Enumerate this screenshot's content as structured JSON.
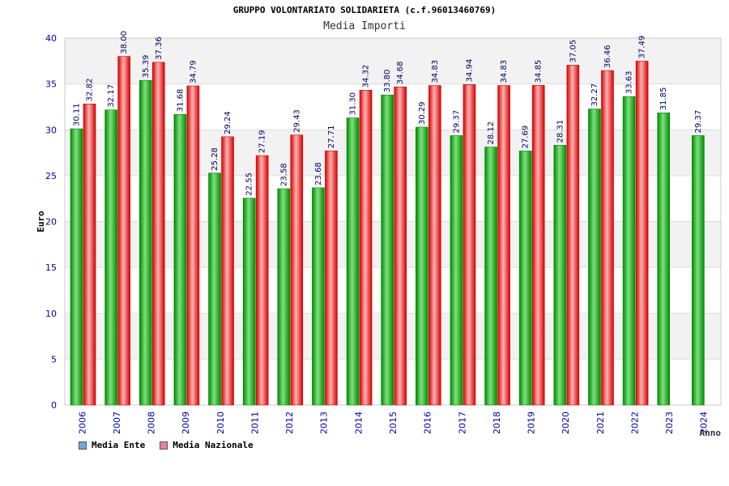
{
  "chart_data": {
    "type": "bar",
    "title": "GRUPPO VOLONTARIATO SOLIDARIETA (c.f.96013460769)",
    "subtitle": "Media Importi",
    "xlabel": "Anno",
    "ylabel": "Euro",
    "ylim": [
      0,
      40
    ],
    "yticks": [
      0,
      5,
      10,
      15,
      20,
      25,
      30,
      35,
      40
    ],
    "grid": true,
    "legend_position": "bottom-left",
    "categories": [
      "2006",
      "2007",
      "2008",
      "2009",
      "2010",
      "2011",
      "2012",
      "2013",
      "2014",
      "2015",
      "2016",
      "2017",
      "2018",
      "2019",
      "2020",
      "2021",
      "2022",
      "2023",
      "2024"
    ],
    "series": [
      {
        "name": "Media Ente",
        "values": [
          30.11,
          32.17,
          35.39,
          31.68,
          25.28,
          22.55,
          23.58,
          23.68,
          31.3,
          33.8,
          30.29,
          29.37,
          28.12,
          27.69,
          28.31,
          32.27,
          33.63,
          31.85,
          29.37
        ],
        "labels": [
          "30.11",
          "32.17",
          "35.39",
          "31.68",
          "25.28",
          "22.55",
          "23.58",
          "23.68",
          "31.30",
          "33.80",
          "30.29",
          "29.37",
          "28.12",
          "27.69",
          "28.31",
          "32.27",
          "33.63",
          "31.85",
          "29.37"
        ]
      },
      {
        "name": "Media Nazionale",
        "values": [
          32.82,
          38.0,
          37.36,
          34.79,
          29.24,
          27.19,
          29.43,
          27.71,
          34.32,
          34.68,
          34.83,
          34.94,
          34.83,
          34.85,
          37.05,
          36.46,
          37.49,
          null,
          null
        ],
        "labels": [
          "32.82",
          "38.00",
          "37.36",
          "34.79",
          "29.24",
          "27.19",
          "29.43",
          "27.71",
          "34.32",
          "34.68",
          "34.83",
          "34.94",
          "34.83",
          "34.85",
          "37.05",
          "36.46",
          "37.49",
          "",
          ""
        ]
      }
    ]
  },
  "legend": {
    "items": [
      {
        "label": "Media Ente",
        "color": "#6fa8dc"
      },
      {
        "label": "Media Nazionale",
        "color": "#e67fb0"
      }
    ]
  },
  "colors": {
    "ente_dark": "#008a00",
    "ente_light": "#7fe07f",
    "naz_dark": "#d40000",
    "naz_light": "#ffb3b3",
    "axis_text": "#0000aa",
    "label_text": "#000066",
    "band": "#f2f2f2"
  }
}
